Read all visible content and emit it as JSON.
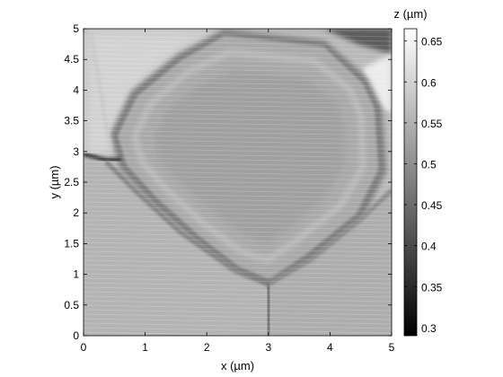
{
  "chart_data": {
    "type": "heatmap",
    "xlabel": "x (µm)",
    "ylabel": "y (µm)",
    "colorbar_label": "z (µm)",
    "xlim": [
      0,
      5
    ],
    "ylim": [
      0,
      5
    ],
    "xticks": [
      0,
      1,
      2,
      3,
      4,
      5
    ],
    "yticks": [
      0,
      0.5,
      1,
      1.5,
      2,
      2.5,
      3,
      3.5,
      4,
      4.5,
      5
    ],
    "colorbar_range": [
      0.29,
      0.665
    ],
    "colorbar_ticks": [
      0.3,
      0.35,
      0.4,
      0.45,
      0.5,
      0.55,
      0.6,
      0.65
    ],
    "colormap": "gray",
    "grid": false
  }
}
